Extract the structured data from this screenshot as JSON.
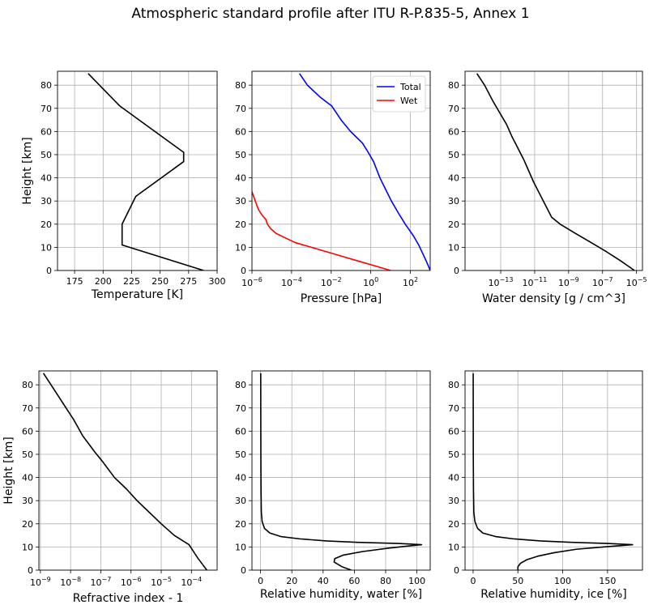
{
  "figure": {
    "title": "Atmospheric standard profile after ITU R-P.835-5, Annex 1"
  },
  "chart_data": [
    {
      "type": "line",
      "id": "temperature",
      "xlabel": "Temperature [K]",
      "ylabel": "Height [km]",
      "xscale": "linear",
      "xlim": [
        160,
        300
      ],
      "ylim": [
        0,
        86
      ],
      "xticks": [
        175,
        200,
        225,
        250,
        275,
        300
      ],
      "xticklabels": [
        "175",
        "200",
        "225",
        "250",
        "275",
        "300"
      ],
      "yticks": [
        0,
        10,
        20,
        30,
        40,
        50,
        60,
        70,
        80
      ],
      "yticklabels": [
        "0",
        "10",
        "20",
        "30",
        "40",
        "50",
        "60",
        "70",
        "80"
      ],
      "grid": true,
      "series": [
        {
          "color": "#000000",
          "points": [
            [
              288.15,
              0
            ],
            [
              216.65,
              11
            ],
            [
              216.65,
              20
            ],
            [
              228.65,
              32
            ],
            [
              270.65,
              47
            ],
            [
              270.65,
              51
            ],
            [
              214.65,
              71
            ],
            [
              186.9,
              85
            ]
          ]
        }
      ]
    },
    {
      "type": "line",
      "id": "pressure",
      "xlabel": "Pressure [hPa]",
      "ylabel": "",
      "xscale": "log",
      "xlim": [
        -6,
        3
      ],
      "ylim": [
        0,
        86
      ],
      "xticks": [
        -6,
        -4,
        -2,
        0,
        2
      ],
      "xticklabels": [
        "10^-6",
        "10^-4",
        "10^-2",
        "10^0",
        "10^2"
      ],
      "yticks": [
        0,
        10,
        20,
        30,
        40,
        50,
        60,
        70,
        80
      ],
      "yticklabels": [
        "0",
        "10",
        "20",
        "30",
        "40",
        "50",
        "60",
        "70",
        "80"
      ],
      "grid": true,
      "legend": {
        "position": "top-right"
      },
      "series": [
        {
          "name": "Total",
          "color": "#0000ff",
          "points": [
            [
              3.006,
              0
            ],
            [
              2.75,
              5
            ],
            [
              2.42,
              11
            ],
            [
              2.15,
              15
            ],
            [
              1.74,
              20
            ],
            [
              1.38,
              25
            ],
            [
              1.04,
              30
            ],
            [
              0.75,
              35
            ],
            [
              0.46,
              40
            ],
            [
              0.14,
              47
            ],
            [
              -0.13,
              51
            ],
            [
              -0.42,
              55
            ],
            [
              -1.02,
              60
            ],
            [
              -1.5,
              65
            ],
            [
              -1.97,
              71
            ],
            [
              -2.58,
              75
            ],
            [
              -3.2,
              80
            ],
            [
              -3.6,
              85
            ]
          ]
        },
        {
          "name": "Wet",
          "color": "#ff0000",
          "points": [
            [
              1.0,
              0
            ],
            [
              0.2,
              2
            ],
            [
              -0.6,
              4
            ],
            [
              -1.4,
              6
            ],
            [
              -2.2,
              8
            ],
            [
              -3.0,
              10
            ],
            [
              -3.8,
              12
            ],
            [
              -4.3,
              14
            ],
            [
              -4.78,
              16
            ],
            [
              -5.05,
              18
            ],
            [
              -5.22,
              20
            ],
            [
              -5.3,
              22
            ],
            [
              -5.5,
              24
            ],
            [
              -5.65,
              26
            ],
            [
              -5.75,
              28
            ],
            [
              -6.0,
              34
            ],
            [
              -6.3,
              42
            ],
            [
              -6.6,
              53
            ]
          ]
        }
      ]
    },
    {
      "type": "line",
      "id": "water-density",
      "xlabel": "Water density [g / cm^3]",
      "ylabel": "",
      "xscale": "log",
      "xlim": [
        -15.1,
        -4.65
      ],
      "ylim": [
        0,
        86
      ],
      "xticks": [
        -13,
        -11,
        -9,
        -7,
        -5
      ],
      "xticklabels": [
        "10^-13",
        "10^-11",
        "10^-9",
        "10^-7",
        "10^-5"
      ],
      "yticks": [
        0,
        10,
        20,
        30,
        40,
        50,
        60,
        70,
        80
      ],
      "yticklabels": [
        "0",
        "10",
        "20",
        "30",
        "40",
        "50",
        "60",
        "70",
        "80"
      ],
      "grid": true,
      "series": [
        {
          "color": "#000000",
          "points": [
            [
              -5.12,
              0
            ],
            [
              -5.9,
              4
            ],
            [
              -6.75,
              8
            ],
            [
              -7.66,
              12
            ],
            [
              -8.6,
              16
            ],
            [
              -9.5,
              20
            ],
            [
              -10.0,
              23
            ],
            [
              -10.35,
              28
            ],
            [
              -10.7,
              33
            ],
            [
              -11.05,
              38
            ],
            [
              -11.35,
              43
            ],
            [
              -11.65,
              48
            ],
            [
              -12.0,
              53
            ],
            [
              -12.35,
              58
            ],
            [
              -12.65,
              63
            ],
            [
              -13.05,
              68
            ],
            [
              -13.45,
              73
            ],
            [
              -13.95,
              80
            ],
            [
              -14.4,
              85
            ]
          ]
        }
      ]
    },
    {
      "type": "line",
      "id": "refractive-index",
      "xlabel": "Refractive index - 1",
      "ylabel": "Height [km]",
      "xscale": "log",
      "xlim": [
        -9.05,
        -3.15
      ],
      "ylim": [
        0,
        86
      ],
      "xticks": [
        -9,
        -8,
        -7,
        -6,
        -5,
        -4
      ],
      "xticklabels": [
        "10^-9",
        "10^-8",
        "10^-7",
        "10^-6",
        "10^-5",
        "10^-4"
      ],
      "yticks": [
        0,
        10,
        20,
        30,
        40,
        50,
        60,
        70,
        80
      ],
      "yticklabels": [
        "0",
        "10",
        "20",
        "30",
        "40",
        "50",
        "60",
        "70",
        "80"
      ],
      "grid": true,
      "series": [
        {
          "color": "#000000",
          "points": [
            [
              -3.49,
              0
            ],
            [
              -3.78,
              5
            ],
            [
              -4.08,
              11
            ],
            [
              -4.57,
              15
            ],
            [
              -5.0,
              20
            ],
            [
              -5.4,
              25
            ],
            [
              -5.8,
              30
            ],
            [
              -6.15,
              35
            ],
            [
              -6.55,
              40
            ],
            [
              -6.95,
              47
            ],
            [
              -7.2,
              51
            ],
            [
              -7.6,
              58
            ],
            [
              -7.9,
              65
            ],
            [
              -8.2,
              71
            ],
            [
              -8.5,
              77
            ],
            [
              -8.9,
              85
            ]
          ]
        }
      ]
    },
    {
      "type": "line",
      "id": "rh-water",
      "xlabel": "Relative humidity, water [%]",
      "ylabel": "",
      "xscale": "linear",
      "xlim": [
        -5.5,
        108.5
      ],
      "ylim": [
        0,
        86
      ],
      "xticks": [
        0,
        20,
        40,
        60,
        80,
        100
      ],
      "xticklabels": [
        "0",
        "20",
        "40",
        "60",
        "80",
        "100"
      ],
      "yticks": [
        0,
        10,
        20,
        30,
        40,
        50,
        60,
        70,
        80
      ],
      "yticklabels": [
        "0",
        "10",
        "20",
        "30",
        "40",
        "50",
        "60",
        "70",
        "80"
      ],
      "grid": true,
      "series": [
        {
          "color": "#000000",
          "points": [
            [
              58,
              0
            ],
            [
              52,
              1.5
            ],
            [
              47,
              3.5
            ],
            [
              47.5,
              5
            ],
            [
              53,
              6.5
            ],
            [
              65,
              8
            ],
            [
              82,
              9.5
            ],
            [
              103,
              11
            ],
            [
              88,
              11.5
            ],
            [
              62,
              12
            ],
            [
              42,
              12.6
            ],
            [
              25,
              13.5
            ],
            [
              13,
              14.5
            ],
            [
              6,
              16
            ],
            [
              2.5,
              18
            ],
            [
              1,
              21
            ],
            [
              0.5,
              25
            ],
            [
              0.3,
              35
            ],
            [
              0.2,
              50
            ],
            [
              0.1,
              85
            ]
          ]
        }
      ]
    },
    {
      "type": "line",
      "id": "rh-ice",
      "xlabel": "Relative humidity, ice [%]",
      "ylabel": "",
      "xscale": "linear",
      "xlim": [
        -9,
        189
      ],
      "ylim": [
        0,
        86
      ],
      "xticks": [
        0,
        50,
        100,
        150
      ],
      "xticklabels": [
        "0",
        "50",
        "100",
        "150"
      ],
      "yticks": [
        0,
        10,
        20,
        30,
        40,
        50,
        60,
        70,
        80
      ],
      "yticklabels": [
        "0",
        "10",
        "20",
        "30",
        "40",
        "50",
        "60",
        "70",
        "80"
      ],
      "grid": true,
      "series": [
        {
          "color": "#000000",
          "points": [
            [
              50,
              0
            ],
            [
              50,
              1.5
            ],
            [
              53,
              3
            ],
            [
              60,
              4.5
            ],
            [
              72,
              6
            ],
            [
              90,
              7.5
            ],
            [
              115,
              9
            ],
            [
              145,
              10
            ],
            [
              178,
              11
            ],
            [
              150,
              11.5
            ],
            [
              110,
              12
            ],
            [
              75,
              12.6
            ],
            [
              45,
              13.5
            ],
            [
              25,
              14.5
            ],
            [
              11,
              16
            ],
            [
              5,
              18
            ],
            [
              2,
              21
            ],
            [
              0.8,
              25
            ],
            [
              0.4,
              35
            ],
            [
              0.2,
              50
            ],
            [
              0.1,
              85
            ]
          ]
        }
      ]
    }
  ]
}
